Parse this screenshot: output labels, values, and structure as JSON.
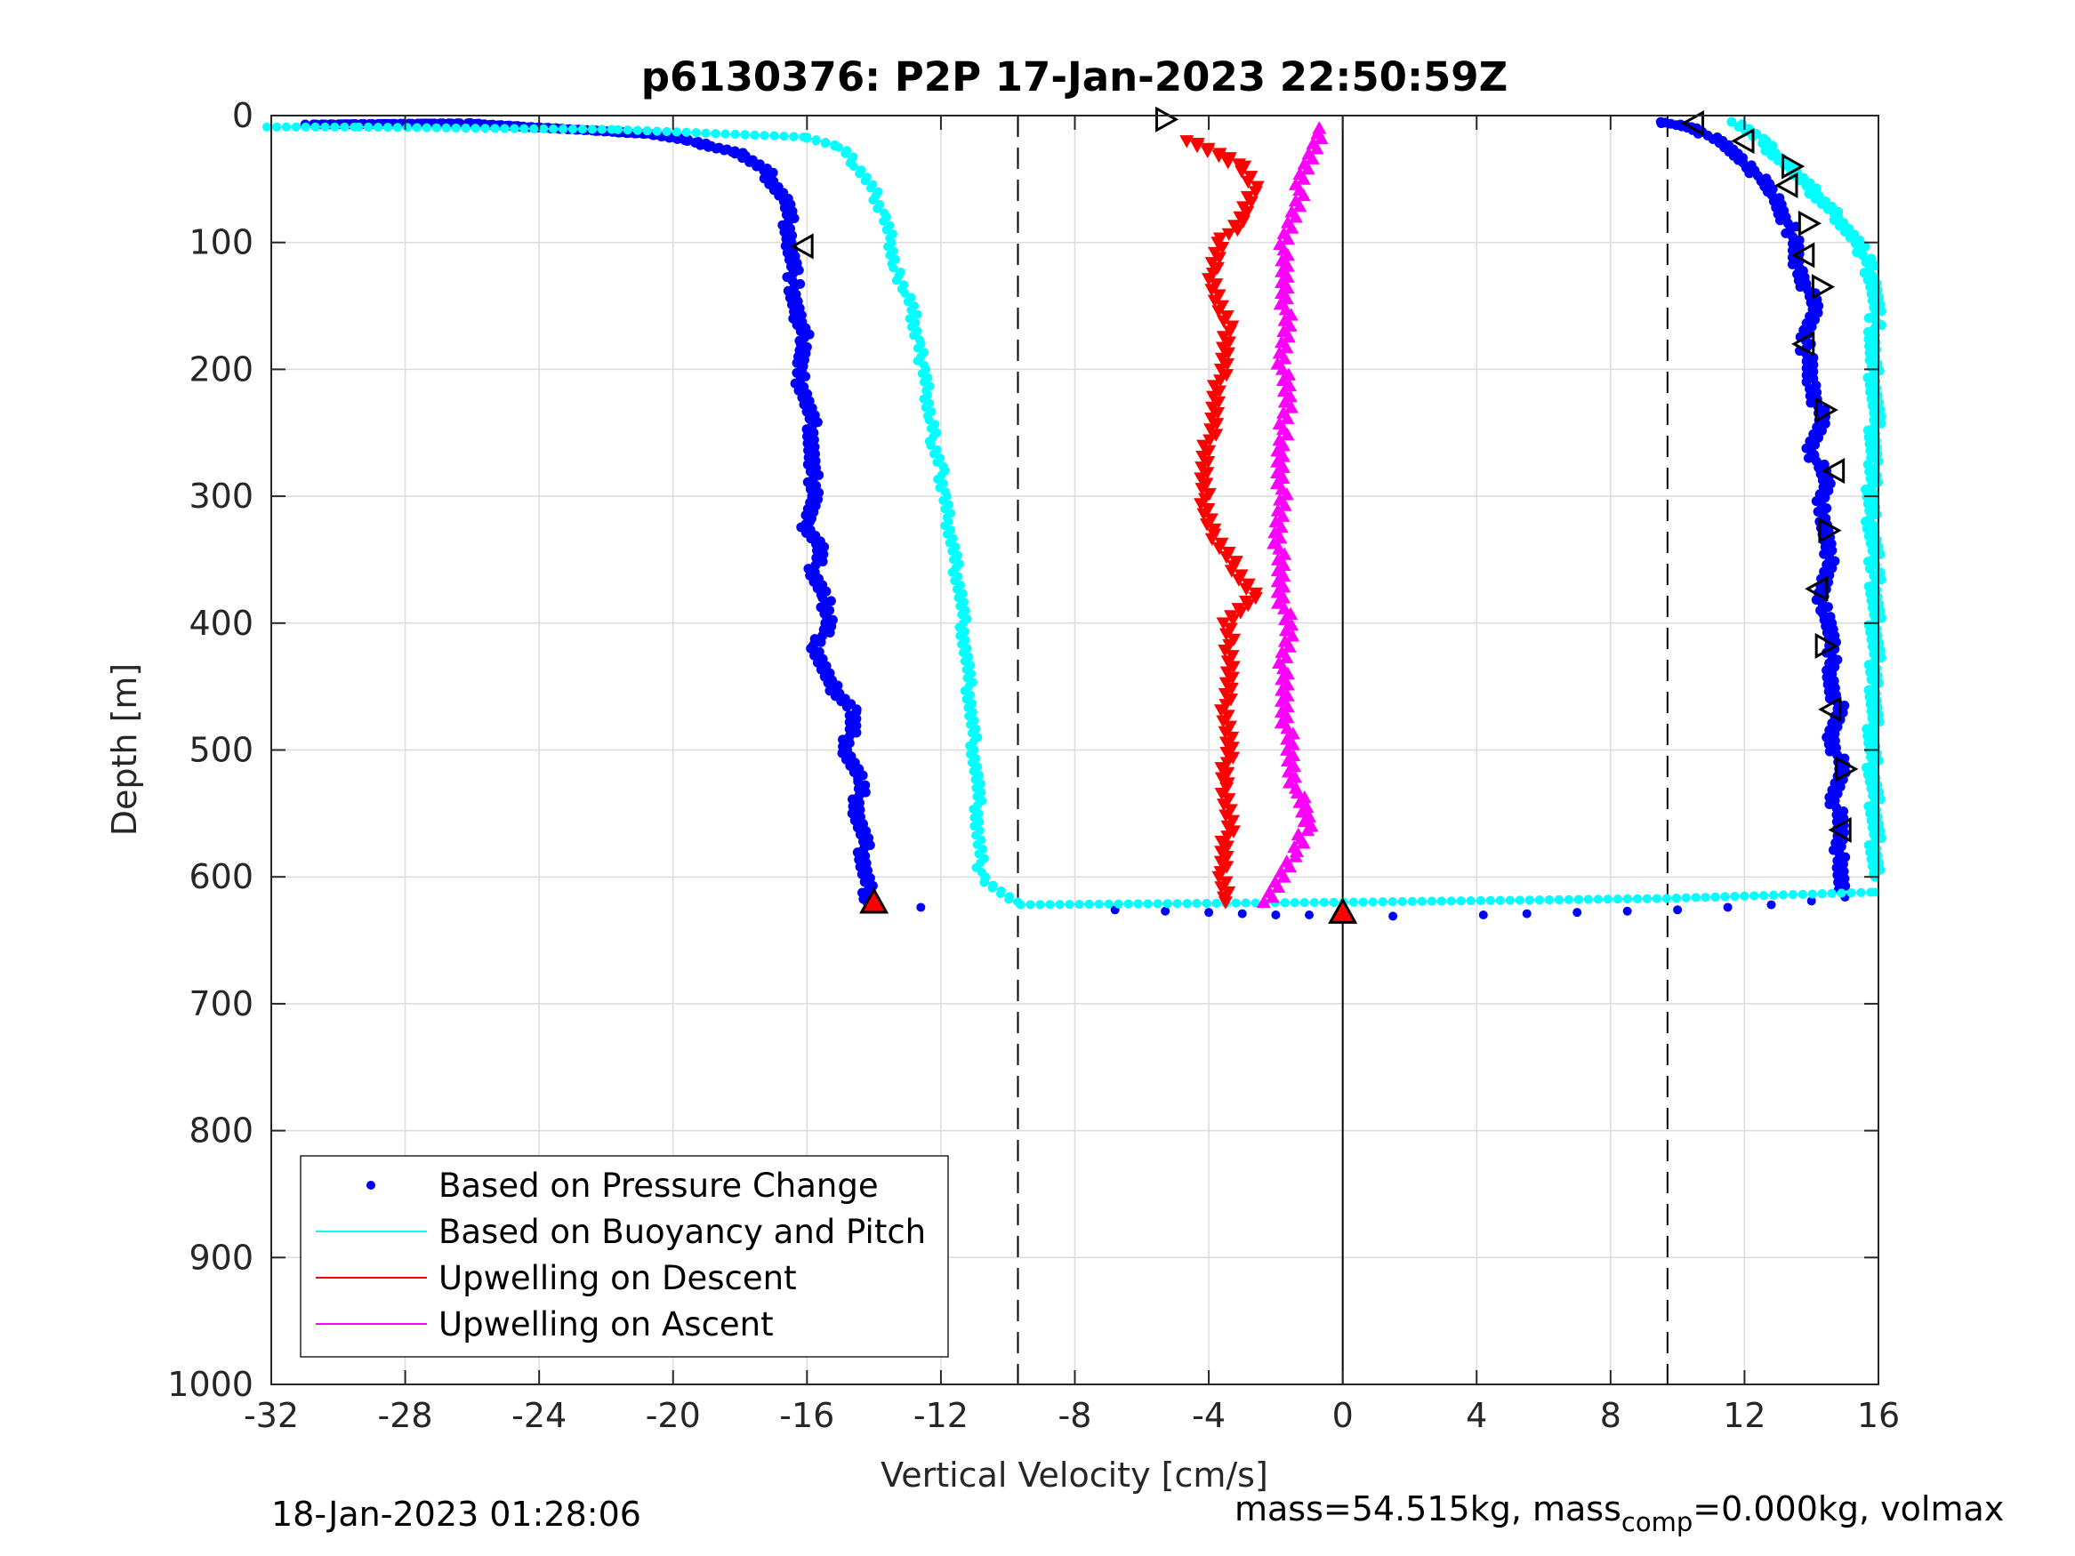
{
  "chart_data": {
    "type": "scatter",
    "title": "p6130376: P2P 17-Jan-2023 22:50:59Z",
    "xlabel": "Vertical Velocity [cm/s]",
    "ylabel": "Depth [m]",
    "xlim": [
      -32,
      16
    ],
    "ylim": [
      0,
      1000
    ],
    "y_reversed": true,
    "grid": true,
    "x_ticks": [
      -32,
      -28,
      -24,
      -20,
      -16,
      -12,
      -8,
      -4,
      0,
      4,
      8,
      12,
      16
    ],
    "x_tick_labels": [
      "-32",
      "-28",
      "-24",
      "-20",
      "-16",
      "-12",
      "-8",
      "-4",
      "0",
      "4",
      "8",
      "12",
      "16"
    ],
    "y_ticks": [
      0,
      100,
      200,
      300,
      400,
      500,
      600,
      700,
      800,
      900,
      1000
    ],
    "y_tick_labels": [
      "0",
      "100",
      "200",
      "300",
      "400",
      "500",
      "600",
      "700",
      "800",
      "900",
      "1000"
    ],
    "reference_lines": {
      "dashed_x": [
        -9.7,
        9.7
      ],
      "solid_x": [
        0
      ],
      "dashed_x_end_depth": 1000,
      "solid_x_start_depth": 0
    },
    "legend": {
      "placement": "bottom-left",
      "entries": [
        {
          "label": "Based on Pressure Change",
          "color": "#0000ff",
          "marker": "dot"
        },
        {
          "label": "Based on Buoyancy and Pitch",
          "color": "#00ffff",
          "marker": "line"
        },
        {
          "label": "Upwelling on Descent",
          "color": "#ff0000",
          "marker": "line"
        },
        {
          "label": "Upwelling on Ascent",
          "color": "#ff00ff",
          "marker": "line"
        }
      ]
    },
    "series": [
      {
        "key": "pressure_descent",
        "color": "#0000ff",
        "marker": "dot",
        "x": [
          -30.8,
          -26.2,
          -22.3,
          -20.5,
          -19.5,
          -18.0,
          -17.2,
          -16.6,
          -16.5,
          -16.4,
          -16.3,
          -16.0,
          -16.3,
          -16.0,
          -15.8,
          -15.9,
          -15.7,
          -16.1,
          -15.6,
          -15.8,
          -15.5,
          -15.3,
          -15.7,
          -15.4,
          -14.6,
          -14.8,
          -14.4,
          -14.5,
          -14.3,
          -14.3,
          -14.2,
          -14.2
        ],
        "y": [
          7,
          6,
          12,
          15,
          20,
          30,
          45,
          70,
          100,
          130,
          160,
          180,
          200,
          225,
          250,
          275,
          300,
          320,
          340,
          360,
          380,
          395,
          420,
          445,
          470,
          500,
          525,
          550,
          575,
          595,
          610,
          620
        ]
      },
      {
        "key": "pressure_bottom",
        "color": "#0000ff",
        "marker": "dot",
        "x": [
          -12.6,
          -6.8,
          -5.3,
          -4.0,
          -3.0,
          -2.0,
          -1.0,
          0,
          1.5,
          4.2,
          5.5,
          7.0,
          8.5,
          10.0,
          11.5,
          12.8,
          14.0,
          15.0
        ],
        "y": [
          624,
          626,
          627,
          628,
          629,
          630,
          630,
          631,
          631,
          630,
          629,
          628,
          627,
          626,
          624,
          622,
          619,
          616
        ]
      },
      {
        "key": "pressure_ascent",
        "color": "#0000ff",
        "marker": "dot",
        "x": [
          15.0,
          14.8,
          14.9,
          14.7,
          14.9,
          14.6,
          14.8,
          14.5,
          14.7,
          14.3,
          14.4,
          14.6,
          14.2,
          14.5,
          14.0,
          14.3,
          14.0,
          13.8,
          14.1,
          13.6,
          13.4,
          12.8,
          12.0,
          11.2,
          10.5,
          9.5
        ],
        "y": [
          610,
          590,
          565,
          540,
          515,
          490,
          465,
          440,
          415,
          390,
          365,
          340,
          315,
          290,
          265,
          240,
          210,
          180,
          150,
          120,
          90,
          60,
          35,
          20,
          10,
          5
        ]
      },
      {
        "key": "buoyancy_pitch",
        "color": "#00ffff",
        "marker": "line",
        "x": [
          -32.0,
          -29.5,
          -21.7,
          -16.0,
          -15.0,
          -14.5,
          -14.0,
          -13.7,
          -13.5,
          -13.4,
          -13.0,
          -12.8,
          -12.7,
          -12.5,
          -12.4,
          -12.3,
          -12.2,
          -12.0,
          -11.9,
          -11.8,
          -11.6,
          -11.4,
          -11.3,
          -11.2,
          -11.1,
          -11.0,
          -10.9,
          -10.9,
          -10.8,
          -9.7,
          0,
          9.7,
          15.9
        ],
        "y": [
          9,
          9,
          11,
          17,
          25,
          40,
          60,
          80,
          100,
          120,
          140,
          160,
          180,
          200,
          220,
          240,
          260,
          280,
          300,
          320,
          350,
          380,
          410,
          440,
          470,
          500,
          530,
          560,
          600,
          622,
          620,
          617,
          612
        ]
      },
      {
        "key": "buoyancy_pitch_ascent",
        "color": "#00ffff",
        "marker": "dot",
        "x": [
          11.8,
          12.5,
          13.5,
          14.8,
          15.6,
          15.9,
          15.9,
          15.8,
          15.9,
          15.9,
          15.8,
          15.8,
          15.9,
          15.9,
          15.9,
          15.8,
          15.9,
          15.9
        ],
        "y": [
          5,
          20,
          45,
          80,
          110,
          135,
          165,
          190,
          215,
          240,
          275,
          320,
          360,
          410,
          450,
          500,
          550,
          600
        ]
      },
      {
        "key": "upwelling_descent",
        "color": "#ff0000",
        "marker": "triangle-down",
        "x": [
          -4.5,
          -3.8,
          -3.0,
          -2.6,
          -3.0,
          -3.6,
          -3.9,
          -3.7,
          -3.4,
          -3.6,
          -3.8,
          -4.0,
          -4.2,
          -3.9,
          -2.6,
          -3.5,
          -3.3,
          -3.5,
          -3.4,
          -3.5,
          -3.4,
          -3.6,
          -3.5
        ],
        "y": [
          20,
          30,
          40,
          60,
          80,
          100,
          120,
          150,
          170,
          200,
          230,
          260,
          290,
          330,
          380,
          400,
          430,
          460,
          490,
          530,
          560,
          600,
          620
        ]
      },
      {
        "key": "upwelling_ascent",
        "color": "#ff00ff",
        "marker": "triangle-up",
        "x": [
          -2.2,
          -1.5,
          -1.0,
          -1.4,
          -1.6,
          -1.7,
          -1.8,
          -1.6,
          -1.8,
          -1.9,
          -1.9,
          -1.8,
          -1.9,
          -1.6,
          -1.8,
          -1.7,
          -1.7,
          -1.8,
          -1.5,
          -1.2,
          -0.7
        ],
        "y": [
          620,
          580,
          560,
          530,
          500,
          470,
          440,
          410,
          380,
          350,
          320,
          290,
          260,
          230,
          200,
          170,
          140,
          110,
          80,
          50,
          10
        ]
      }
    ],
    "markers": [
      {
        "x": -16.1,
        "y": 103,
        "symbol": "triangle-left"
      },
      {
        "x": -14.0,
        "y": 620,
        "symbol": "triangle-up-filled-red"
      },
      {
        "x": -5.3,
        "y": 3,
        "symbol": "triangle-right"
      },
      {
        "x": 0,
        "y": 628,
        "symbol": "triangle-up-filled-red"
      },
      {
        "x": 10.5,
        "y": 6,
        "symbol": "triangle-left"
      },
      {
        "x": 12.0,
        "y": 20,
        "symbol": "triangle-left"
      },
      {
        "x": 13.4,
        "y": 40,
        "symbol": "triangle-right"
      },
      {
        "x": 13.3,
        "y": 55,
        "symbol": "triangle-left"
      },
      {
        "x": 13.9,
        "y": 85,
        "symbol": "triangle-right"
      },
      {
        "x": 13.8,
        "y": 110,
        "symbol": "triangle-left"
      },
      {
        "x": 14.3,
        "y": 135,
        "symbol": "triangle-right"
      },
      {
        "x": 13.8,
        "y": 180,
        "symbol": "triangle-left"
      },
      {
        "x": 14.4,
        "y": 232,
        "symbol": "triangle-right"
      },
      {
        "x": 14.7,
        "y": 280,
        "symbol": "triangle-left"
      },
      {
        "x": 14.5,
        "y": 327,
        "symbol": "triangle-right"
      },
      {
        "x": 14.2,
        "y": 373,
        "symbol": "triangle-left"
      },
      {
        "x": 14.4,
        "y": 418,
        "symbol": "triangle-right"
      },
      {
        "x": 14.6,
        "y": 468,
        "symbol": "triangle-left"
      },
      {
        "x": 15.0,
        "y": 515,
        "symbol": "triangle-right"
      },
      {
        "x": 14.9,
        "y": 563,
        "symbol": "triangle-left"
      }
    ]
  },
  "footer": {
    "timestamp": "18-Jan-2023 01:28:06",
    "mass_text": "mass=54.515kg, mass",
    "mass_sub": "comp",
    "mass_tail": "=0.000kg, volmax"
  }
}
